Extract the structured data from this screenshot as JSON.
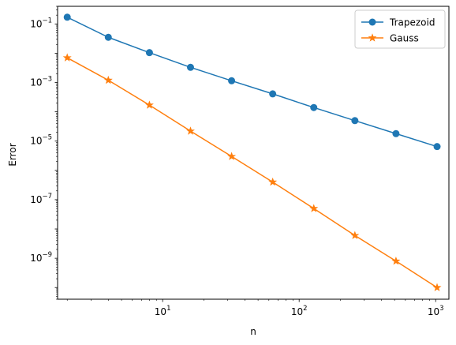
{
  "chart_data": {
    "type": "line",
    "xlabel": "n",
    "ylabel": "Error",
    "xscale": "log",
    "yscale": "log",
    "xlim": [
      1.7,
      1250
    ],
    "ylim": [
      4e-11,
      0.4
    ],
    "grid": false,
    "legend_position": "upper right",
    "x": [
      2,
      4,
      8,
      16,
      32,
      64,
      128,
      256,
      512,
      1024
    ],
    "x_ticks": [
      {
        "value": 10,
        "label": "10",
        "exp": "1"
      },
      {
        "value": 100,
        "label": "10",
        "exp": "2"
      },
      {
        "value": 1000,
        "label": "10",
        "exp": "3"
      }
    ],
    "y_ticks": [
      {
        "value": 0.1,
        "label": "10",
        "exp": "−1"
      },
      {
        "value": 0.001,
        "label": "10",
        "exp": "−3"
      },
      {
        "value": 1e-05,
        "label": "10",
        "exp": "−5"
      },
      {
        "value": 1e-07,
        "label": "10",
        "exp": "−7"
      },
      {
        "value": 1e-09,
        "label": "10",
        "exp": "−9"
      }
    ],
    "series": [
      {
        "name": "Trapezoid",
        "color": "#1f77b4",
        "marker": "circle",
        "values": [
          0.17,
          0.035,
          0.0105,
          0.0033,
          0.00115,
          0.00041,
          0.00014,
          5e-05,
          1.8e-05,
          6.5e-06
        ]
      },
      {
        "name": "Gauss",
        "color": "#ff7f0e",
        "marker": "star",
        "values": [
          0.007,
          0.0012,
          0.00017,
          2.2e-05,
          3e-06,
          4e-07,
          5e-08,
          6e-09,
          8e-10,
          1e-10
        ]
      }
    ]
  }
}
